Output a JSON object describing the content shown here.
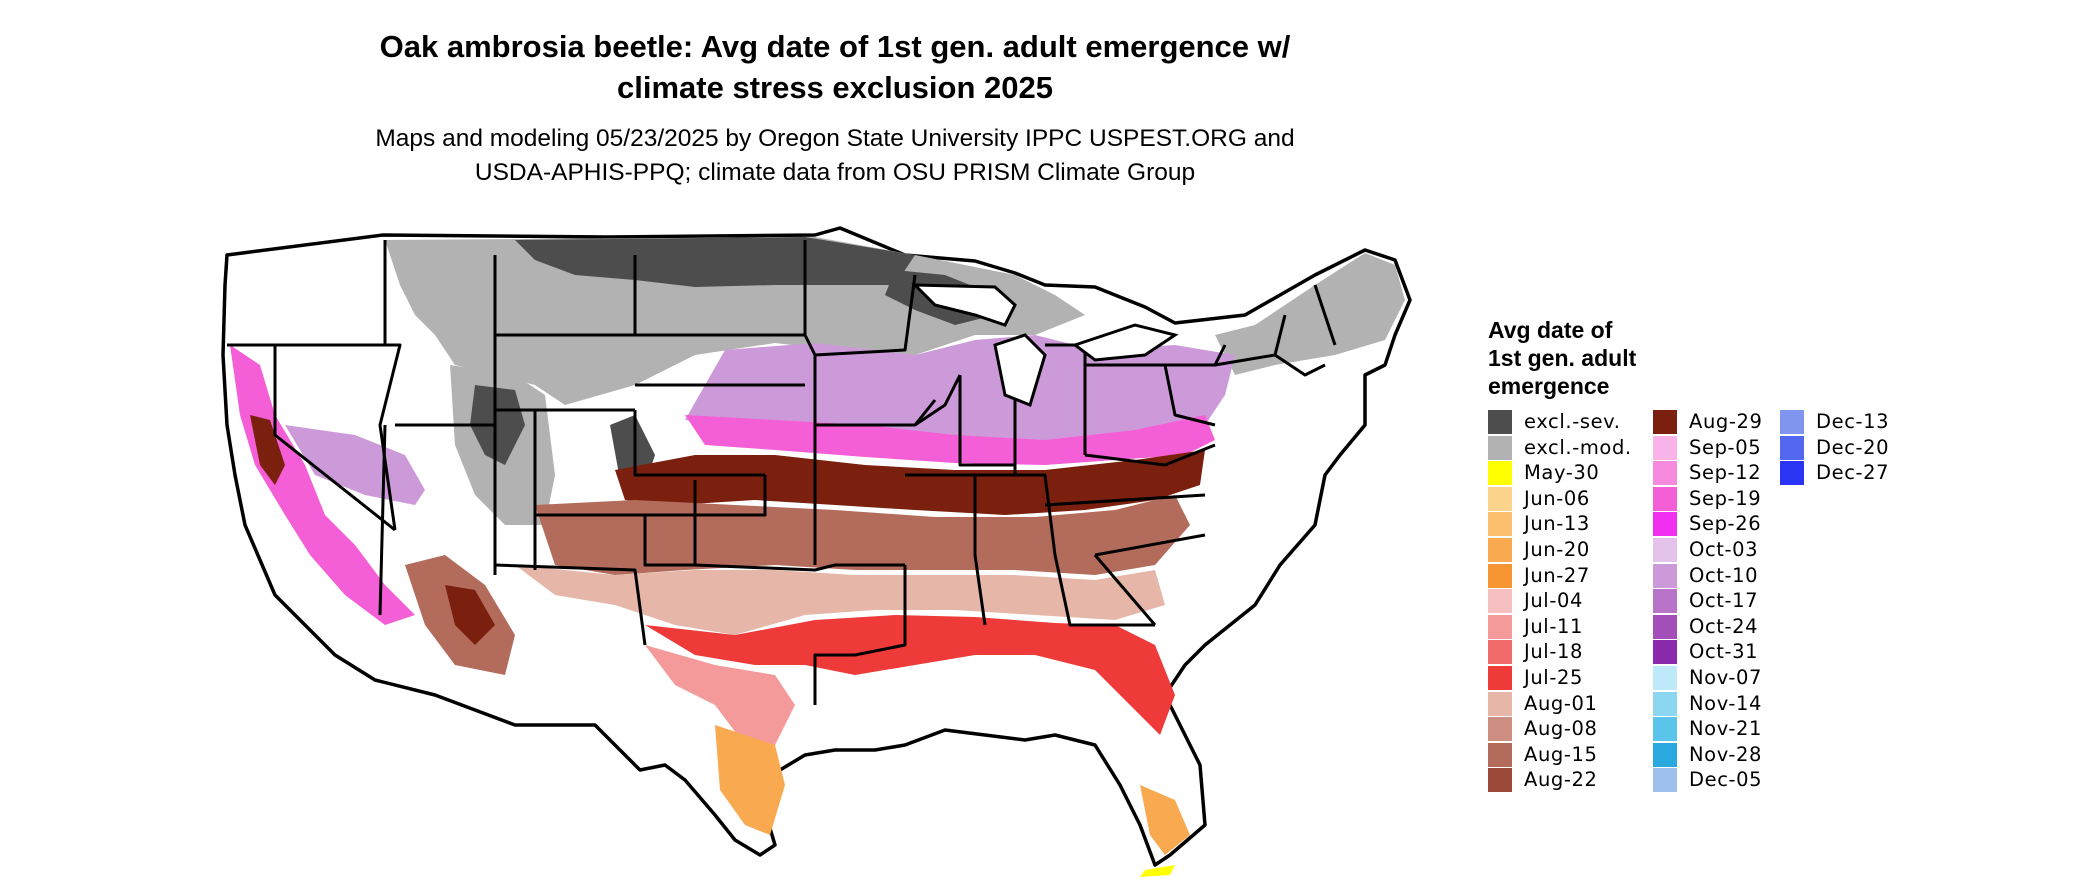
{
  "header": {
    "title_line1": "Oak ambrosia beetle: Avg date of 1st gen. adult emergence w/",
    "title_line2": "climate stress exclusion 2025",
    "subtitle_line1": "Maps and modeling 05/23/2025 by Oregon State University IPPC USPEST.ORG and",
    "subtitle_line2": "USDA-APHIS-PPQ; climate data from OSU PRISM Climate Group"
  },
  "legend": {
    "title_line1": "Avg date of",
    "title_line2": "1st gen. adult",
    "title_line3": "emergence",
    "columns": [
      [
        {
          "label": "excl.-sev.",
          "color": "#4d4d4d"
        },
        {
          "label": "excl.-mod.",
          "color": "#b2b2b2"
        },
        {
          "label": "May-30",
          "color": "#ffff00"
        },
        {
          "label": "Jun-06",
          "color": "#fcd38c"
        },
        {
          "label": "Jun-13",
          "color": "#fbbf6e"
        },
        {
          "label": "Jun-20",
          "color": "#f9a94f"
        },
        {
          "label": "Jun-27",
          "color": "#f79533"
        },
        {
          "label": "Jul-04",
          "color": "#f7c0c0"
        },
        {
          "label": "Jul-11",
          "color": "#f59a9a"
        },
        {
          "label": "Jul-18",
          "color": "#f26b6b"
        },
        {
          "label": "Jul-25",
          "color": "#ef3a3a"
        },
        {
          "label": "Aug-01",
          "color": "#e6b7a9"
        },
        {
          "label": "Aug-08",
          "color": "#cd8e81"
        },
        {
          "label": "Aug-15",
          "color": "#b36b5b"
        },
        {
          "label": "Aug-22",
          "color": "#9c4a3a"
        }
      ],
      [
        {
          "label": "Aug-29",
          "color": "#7b200f"
        },
        {
          "label": "Sep-05",
          "color": "#f8b3e8"
        },
        {
          "label": "Sep-12",
          "color": "#f68adf"
        },
        {
          "label": "Sep-19",
          "color": "#f45ed6"
        },
        {
          "label": "Sep-26",
          "color": "#f22ef0"
        },
        {
          "label": "Oct-03",
          "color": "#e3c3ea"
        },
        {
          "label": "Oct-10",
          "color": "#cd9ad9"
        },
        {
          "label": "Oct-17",
          "color": "#b874c9"
        },
        {
          "label": "Oct-24",
          "color": "#a24fba"
        },
        {
          "label": "Oct-31",
          "color": "#8b2aab"
        },
        {
          "label": "Nov-07",
          "color": "#bde9f8"
        },
        {
          "label": "Nov-14",
          "color": "#8bd7f2"
        },
        {
          "label": "Nov-21",
          "color": "#5bc4ea"
        },
        {
          "label": "Nov-28",
          "color": "#2aa9df"
        },
        {
          "label": "Dec-05",
          "color": "#9fc0ec"
        }
      ],
      [
        {
          "label": "Dec-13",
          "color": "#7f95ee"
        },
        {
          "label": "Dec-20",
          "color": "#5468ef"
        },
        {
          "label": "Dec-27",
          "color": "#2a34f4"
        }
      ]
    ]
  }
}
